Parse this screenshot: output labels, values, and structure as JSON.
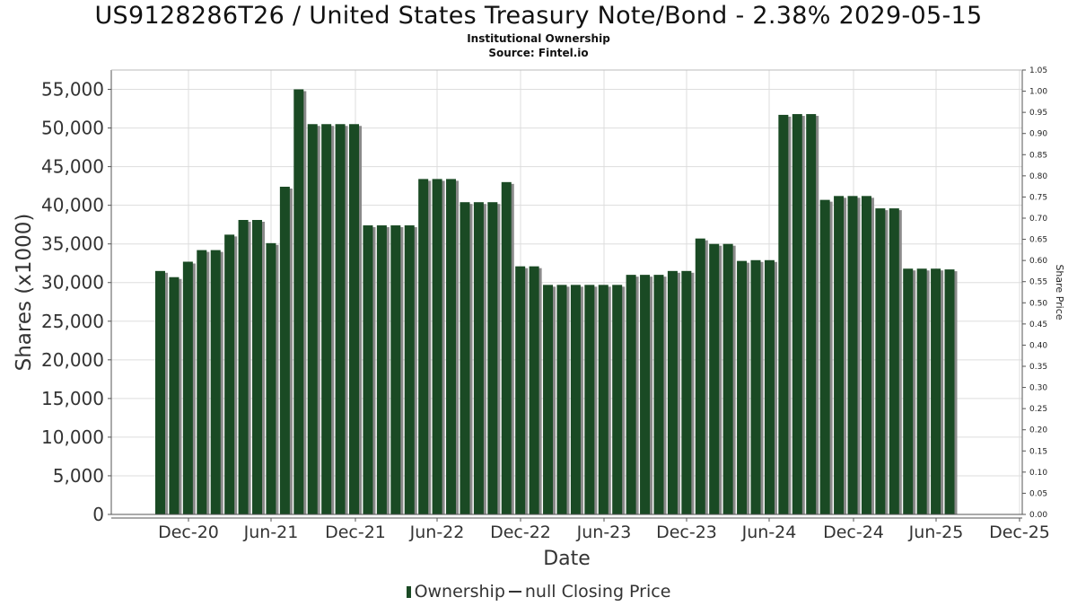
{
  "header": {
    "title": "US9128286T26 / United States Treasury Note/Bond - 2.38% 2029-05-15",
    "subtitle": "Institutional Ownership",
    "source": "Source: Fintel.io"
  },
  "legend": {
    "ownership_label": "Ownership",
    "price_label": "null Closing Price"
  },
  "colors": {
    "bar": "#1a4a24",
    "bar_shadow": "#8a8a8a",
    "grid": "#dddddd",
    "axis": "#555555"
  },
  "chart_data": {
    "type": "bar",
    "xlabel": "Date",
    "ylabel": "Shares (x1000)",
    "y2label": "Share Price",
    "ylim": [
      0,
      57500
    ],
    "y2lim": [
      0,
      1.05
    ],
    "grid": true,
    "legend_position": "bottom",
    "x_ticks": [
      "Dec-20",
      "Jun-21",
      "Dec-21",
      "Jun-22",
      "Dec-22",
      "Jun-23",
      "Dec-23",
      "Jun-24",
      "Dec-24",
      "Jun-25",
      "Dec-25"
    ],
    "y_ticks": [
      "0",
      "5,000",
      "10,000",
      "15,000",
      "20,000",
      "25,000",
      "30,000",
      "35,000",
      "40,000",
      "45,000",
      "50,000",
      "55,000"
    ],
    "y2_ticks": [
      "0.00",
      "0.05",
      "0.10",
      "0.15",
      "0.20",
      "0.25",
      "0.30",
      "0.35",
      "0.40",
      "0.45",
      "0.50",
      "0.55",
      "0.60",
      "0.65",
      "0.70",
      "0.75",
      "0.80",
      "0.85",
      "0.90",
      "0.95",
      "1.00",
      "1.05"
    ],
    "series": [
      {
        "name": "Ownership",
        "values": [
          31500,
          30700,
          32700,
          34200,
          34200,
          36200,
          38100,
          38100,
          35100,
          42400,
          55000,
          50500,
          50500,
          50500,
          50500,
          37400,
          37400,
          37400,
          37400,
          43400,
          43400,
          43400,
          40400,
          40400,
          40400,
          43000,
          32100,
          32100,
          29700,
          29700,
          29700,
          29700,
          29700,
          29700,
          31000,
          31000,
          31000,
          31500,
          31500,
          35700,
          35000,
          35000,
          32800,
          32900,
          32900,
          51700,
          51800,
          51800,
          40700,
          41200,
          41200,
          41200,
          39600,
          39600,
          31800,
          31800,
          31800,
          31700
        ]
      }
    ]
  }
}
